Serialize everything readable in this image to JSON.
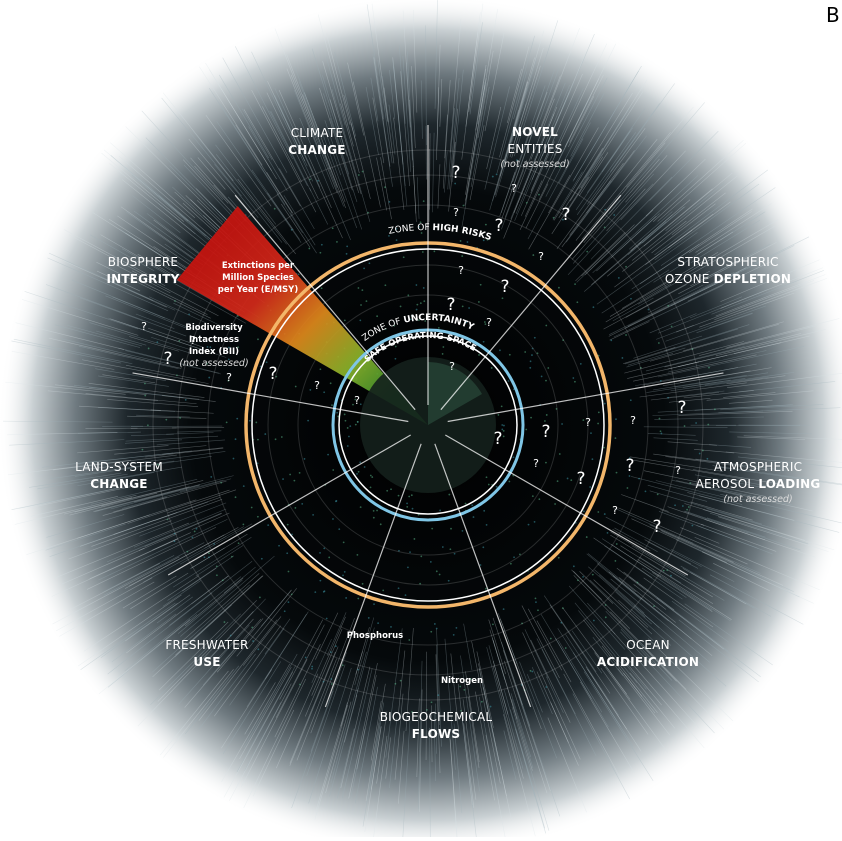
{
  "panel_label": "B",
  "boundaries": [
    {
      "lines": [
        [
          {
            "text": "CLIMATE"
          }
        ],
        [
          {
            "text": "CHANGE",
            "bold": true
          }
        ]
      ]
    },
    {
      "lines": [
        [
          {
            "text": "NOVEL",
            "bold": true
          }
        ],
        [
          {
            "text": "ENTITIES"
          }
        ]
      ],
      "note": "(not assessed)"
    },
    {
      "lines": [
        [
          {
            "text": "STRATOSPHERIC"
          }
        ],
        [
          {
            "text": "OZONE "
          },
          {
            "text": "DEPLETION",
            "bold": true
          }
        ]
      ]
    },
    {
      "lines": [
        [
          {
            "text": "ATMOSPHERIC"
          }
        ],
        [
          {
            "text": "AEROSOL "
          },
          {
            "text": "LOADING",
            "bold": true
          }
        ]
      ],
      "note": "(not assessed)"
    },
    {
      "lines": [
        [
          {
            "text": "OCEAN"
          }
        ],
        [
          {
            "text": "ACIDIFICATION",
            "bold": true
          }
        ]
      ]
    },
    {
      "lines": [
        [
          {
            "text": "BIOGEOCHEMICAL"
          }
        ],
        [
          {
            "text": "FLOWS",
            "bold": true
          }
        ]
      ]
    },
    {
      "lines": [
        [
          {
            "text": "FRESHWATER"
          }
        ],
        [
          {
            "text": "USE",
            "bold": true
          }
        ]
      ]
    },
    {
      "lines": [
        [
          {
            "text": "LAND-SYSTEM"
          }
        ],
        [
          {
            "text": "CHANGE",
            "bold": true
          }
        ]
      ]
    },
    {
      "lines": [
        [
          {
            "text": "BIOSPHERE"
          }
        ],
        [
          {
            "text": "INTEGRITY",
            "bold": true
          }
        ]
      ]
    }
  ],
  "sub_labels": [
    {
      "lines": [
        "Extinctions per",
        "Million Species",
        "per Year (E/MSY)"
      ]
    },
    {
      "lines": [
        "Biodiversity",
        "Intactness",
        "Index (BII)"
      ],
      "note": "(not assessed)"
    },
    {
      "lines": [
        "Phosphorus"
      ]
    },
    {
      "lines": [
        "Nitrogen"
      ]
    }
  ],
  "zones": {
    "high_risk": [
      "ZONE OF ",
      "HIGH RISKS"
    ],
    "uncertainty": [
      "ZONE OF ",
      "UNCERTAINTY"
    ],
    "safe": [
      "SAFE OPERATING SPACE"
    ]
  },
  "question_marks": [
    "?",
    "?",
    "?",
    "?",
    "?",
    "?",
    "?",
    "?",
    "?",
    "?",
    "?",
    "?",
    "?",
    "?",
    "?",
    "?",
    "?",
    "?",
    "?",
    "?",
    "?",
    "?",
    "?",
    "?",
    "?",
    "?",
    "?",
    "?",
    "?"
  ]
}
